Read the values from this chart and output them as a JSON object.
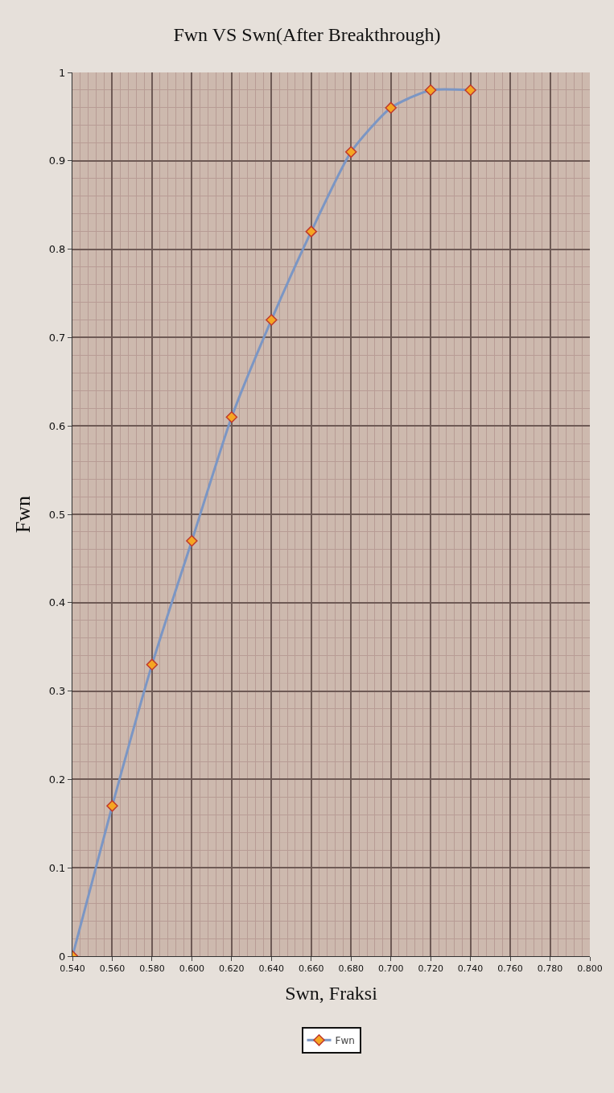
{
  "chart_data": {
    "type": "line",
    "title": "Fwn VS Swn(After Breakthrough)",
    "xlabel": "Swn, Fraksi",
    "ylabel": "Fwn",
    "x": [
      0.54,
      0.56,
      0.58,
      0.6,
      0.62,
      0.64,
      0.66,
      0.68,
      0.7,
      0.72,
      0.74
    ],
    "series": [
      {
        "name": "Fwn",
        "color": "#7b96c4",
        "values": [
          0,
          0.17,
          0.33,
          0.47,
          0.61,
          0.72,
          0.82,
          0.91,
          0.96,
          0.98,
          0.98
        ]
      }
    ],
    "xlim": [
      0.54,
      0.8
    ],
    "xticks": [
      {
        "value": 0.54,
        "label": "0.540"
      },
      {
        "value": 0.56,
        "label": "0.560"
      },
      {
        "value": 0.58,
        "label": "0.580"
      },
      {
        "value": 0.6,
        "label": "0.600"
      },
      {
        "value": 0.62,
        "label": "0.620"
      },
      {
        "value": 0.64,
        "label": "0.640"
      },
      {
        "value": 0.66,
        "label": "0.660"
      },
      {
        "value": 0.68,
        "label": "0.680"
      },
      {
        "value": 0.7,
        "label": "0.700"
      },
      {
        "value": 0.72,
        "label": "0.720"
      },
      {
        "value": 0.74,
        "label": "0.740"
      },
      {
        "value": 0.76,
        "label": "0.760"
      },
      {
        "value": 0.78,
        "label": "0.780"
      },
      {
        "value": 0.8,
        "label": "0.800"
      }
    ],
    "ylim": [
      0,
      1
    ],
    "yticks": [
      0,
      0.1,
      0.2,
      0.3,
      0.4,
      0.5,
      0.6,
      0.7,
      0.8,
      0.9,
      1
    ],
    "grid": true,
    "legend": "bottom",
    "marker": "diamond",
    "line_style": "solid"
  }
}
